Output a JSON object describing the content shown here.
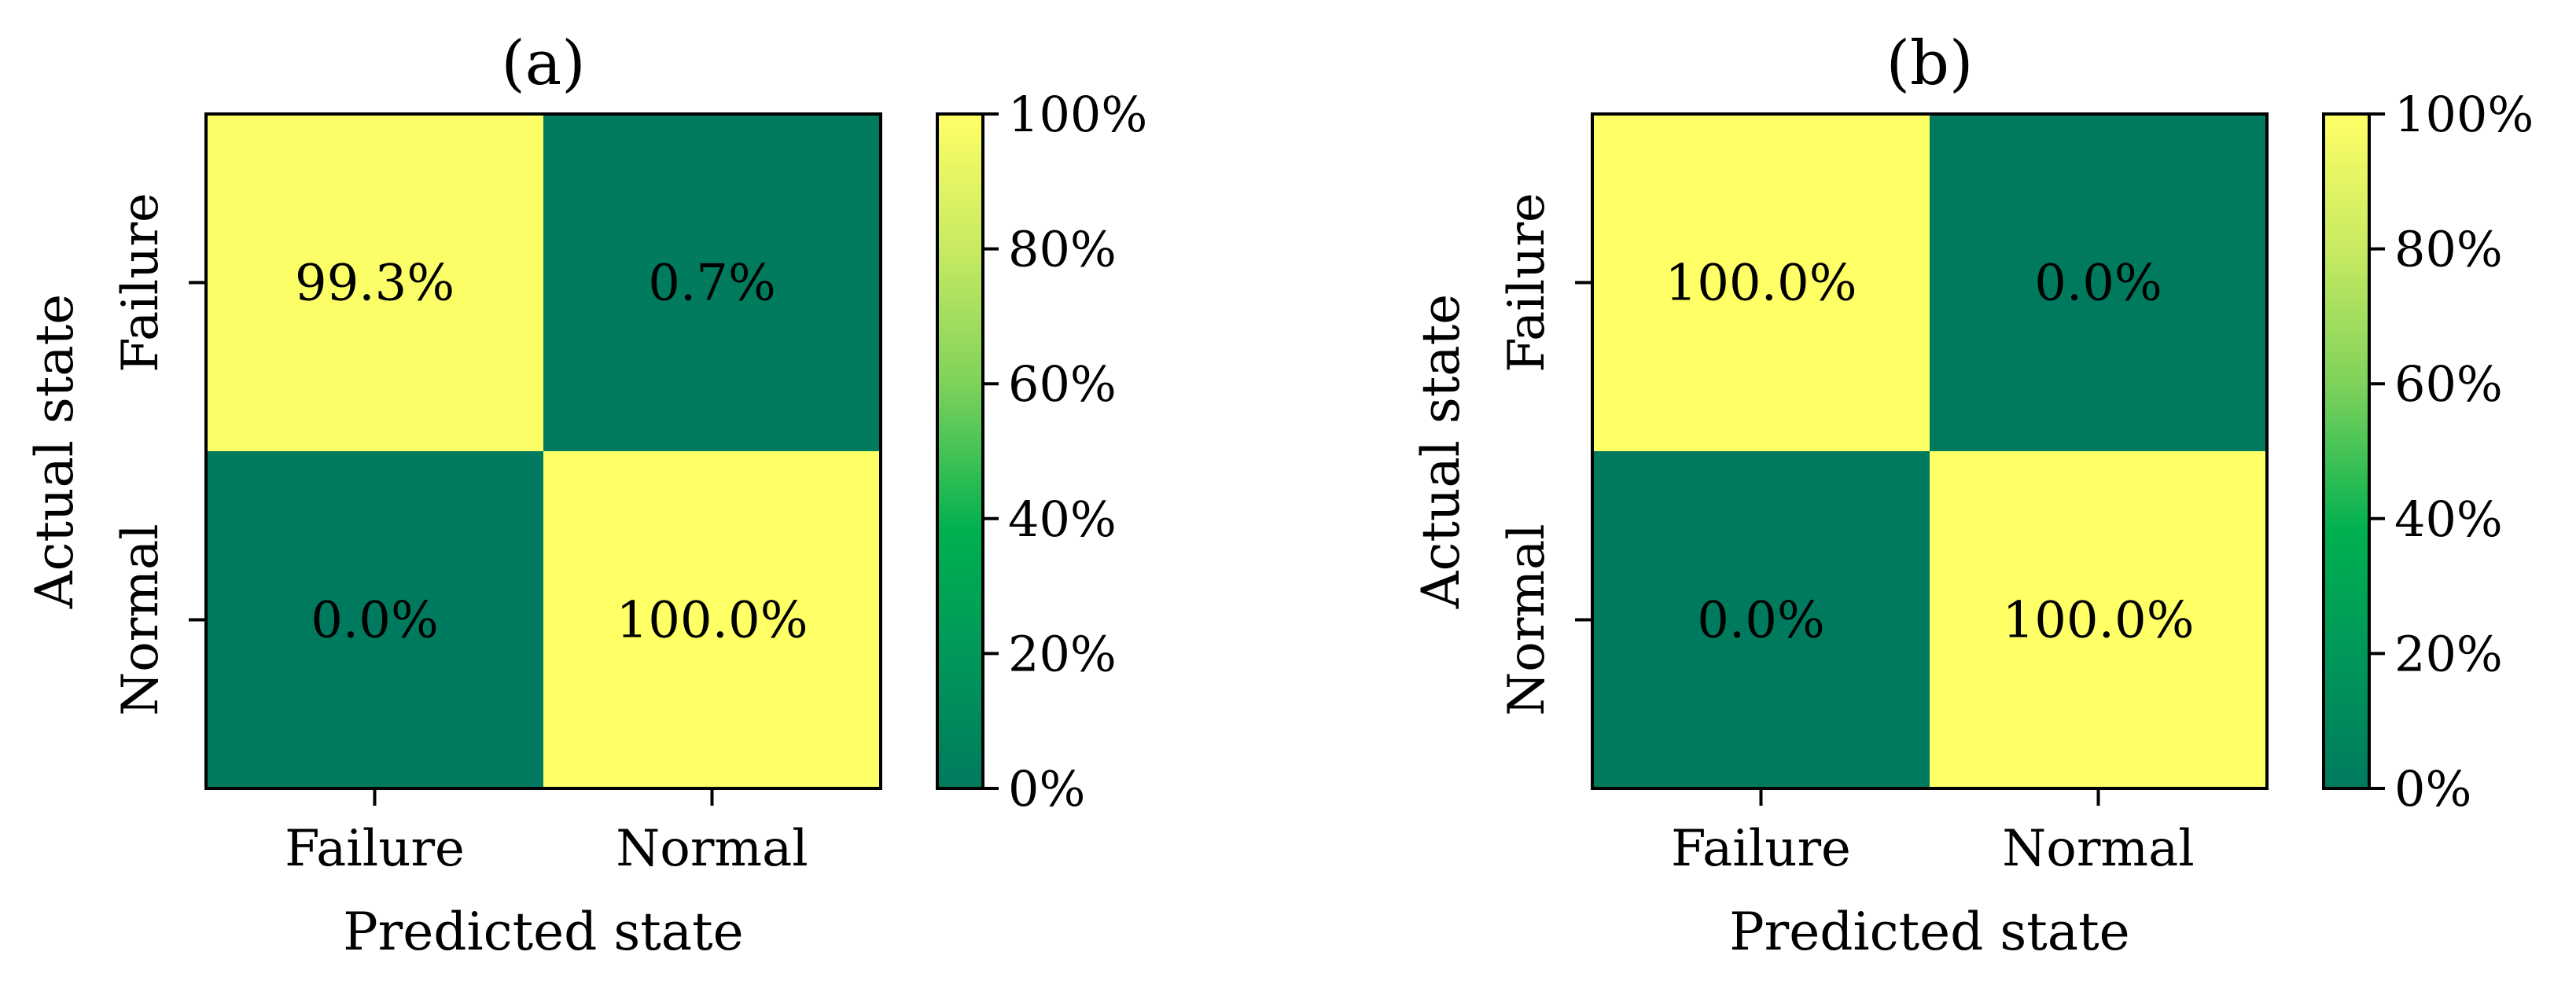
{
  "chart_data": [
    {
      "type": "heatmap",
      "title": "(a)",
      "xlabel": "Predicted state",
      "ylabel": "Actual state",
      "x_categories": [
        "Failure",
        "Normal"
      ],
      "y_categories": [
        "Failure",
        "Normal"
      ],
      "values": [
        [
          99.3,
          0.7
        ],
        [
          0.0,
          100.0
        ]
      ],
      "cell_labels": [
        [
          "99.3%",
          "0.7%"
        ],
        [
          "0.0%",
          "100.0%"
        ]
      ],
      "colorbar": {
        "range": [
          0,
          100
        ],
        "ticks": [
          "0%",
          "20%",
          "40%",
          "60%",
          "80%",
          "100%"
        ],
        "tick_values": [
          0,
          20,
          40,
          60,
          80,
          100
        ]
      },
      "colormap": [
        "#007a5e",
        "#00b050",
        "#ffff66"
      ]
    },
    {
      "type": "heatmap",
      "title": "(b)",
      "xlabel": "Predicted state",
      "ylabel": "Actual state",
      "x_categories": [
        "Failure",
        "Normal"
      ],
      "y_categories": [
        "Failure",
        "Normal"
      ],
      "values": [
        [
          100.0,
          0.0
        ],
        [
          0.0,
          100.0
        ]
      ],
      "cell_labels": [
        [
          "100.0%",
          "0.0%"
        ],
        [
          "0.0%",
          "100.0%"
        ]
      ],
      "colorbar": {
        "range": [
          0,
          100
        ],
        "ticks": [
          "0%",
          "20%",
          "40%",
          "60%",
          "80%",
          "100%"
        ],
        "tick_values": [
          0,
          20,
          40,
          60,
          80,
          100
        ]
      },
      "colormap": [
        "#007a5e",
        "#00b050",
        "#ffff66"
      ]
    }
  ]
}
